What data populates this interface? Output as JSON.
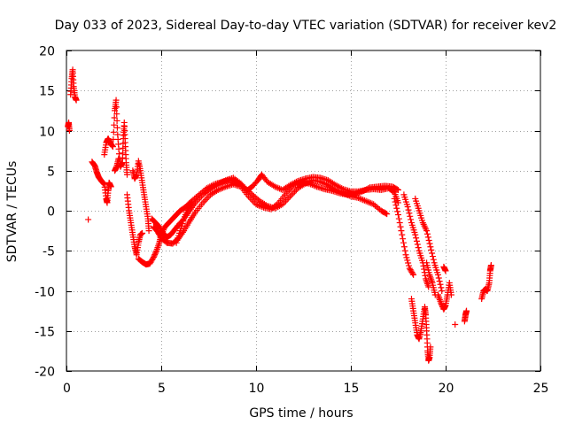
{
  "chart_data": {
    "type": "scatter",
    "title": "Day 033 of 2023, Sidereal Day-to-day VTEC variation (SDTVAR) for receiver kev2",
    "xlabel": "GPS time / hours",
    "ylabel": "SDTVAR / TECUs",
    "xlim": [
      0,
      25
    ],
    "ylim": [
      -20,
      20
    ],
    "xticks": [
      0,
      5,
      10,
      15,
      20,
      25
    ],
    "yticks": [
      -20,
      -15,
      -10,
      -5,
      0,
      5,
      10,
      15,
      20
    ],
    "grid": true,
    "marker": "+",
    "color": "#ff0000",
    "series": [
      {
        "name": "SDTVAR",
        "segments": [
          [
            [
              0.08,
              10.5
            ],
            [
              0.12,
              11.0
            ],
            [
              0.16,
              10.0
            ]
          ],
          [
            [
              0.22,
              14.5
            ],
            [
              0.28,
              16.5
            ],
            [
              0.33,
              17.6
            ],
            [
              0.38,
              15.5
            ],
            [
              0.45,
              14.2
            ],
            [
              0.52,
              13.8
            ]
          ],
          [
            [
              1.15,
              -1.1
            ]
          ],
          [
            [
              1.35,
              6.1
            ],
            [
              1.5,
              5.6
            ],
            [
              1.6,
              4.8
            ],
            [
              1.7,
              4.2
            ],
            [
              1.85,
              3.7
            ],
            [
              2.0,
              3.3
            ],
            [
              2.1,
              1.5
            ],
            [
              2.15,
              1.0
            ],
            [
              2.2,
              2.5
            ],
            [
              2.25,
              3.5
            ],
            [
              2.35,
              3.0
            ]
          ],
          [
            [
              2.0,
              7.0
            ],
            [
              2.1,
              8.5
            ],
            [
              2.2,
              9.0
            ],
            [
              2.3,
              8.5
            ],
            [
              2.45,
              8.0
            ],
            [
              2.55,
              12.5
            ],
            [
              2.62,
              13.8
            ],
            [
              2.7,
              9.5
            ],
            [
              2.8,
              6.5
            ],
            [
              2.85,
              5.5
            ],
            [
              2.95,
              6.0
            ],
            [
              3.0,
              9.0
            ],
            [
              3.05,
              11.0
            ],
            [
              3.1,
              8.5
            ],
            [
              3.15,
              6.0
            ],
            [
              3.2,
              4.5
            ]
          ],
          [
            [
              2.55,
              5.0
            ],
            [
              2.65,
              5.5
            ],
            [
              2.75,
              6.5
            ]
          ],
          [
            [
              3.2,
              2.0
            ],
            [
              3.3,
              0.0
            ],
            [
              3.4,
              -1.5
            ],
            [
              3.5,
              -3.0
            ],
            [
              3.6,
              -4.5
            ],
            [
              3.7,
              -5.5
            ],
            [
              3.8,
              -4.0
            ],
            [
              3.9,
              -3.0
            ],
            [
              4.0,
              -2.8
            ]
          ],
          [
            [
              3.5,
              5.0
            ],
            [
              3.6,
              4.0
            ],
            [
              3.7,
              4.5
            ],
            [
              3.8,
              6.2
            ],
            [
              3.9,
              5.0
            ],
            [
              4.0,
              3.5
            ],
            [
              4.1,
              2.0
            ],
            [
              4.2,
              0.5
            ],
            [
              4.3,
              -1.0
            ],
            [
              4.35,
              -2.5
            ]
          ],
          [
            [
              3.8,
              -6.0
            ],
            [
              4.0,
              -6.4
            ],
            [
              4.2,
              -6.7
            ],
            [
              4.4,
              -6.6
            ],
            [
              4.6,
              -5.8
            ],
            [
              4.75,
              -5.0
            ],
            [
              4.9,
              -4.0
            ],
            [
              5.0,
              -3.0
            ],
            [
              5.2,
              -2.0
            ],
            [
              5.4,
              -1.5
            ],
            [
              5.6,
              -1.0
            ],
            [
              5.8,
              -0.5
            ],
            [
              6.0,
              0.0
            ],
            [
              6.3,
              0.5
            ],
            [
              6.6,
              1.2
            ],
            [
              7.0,
              2.0
            ],
            [
              7.4,
              2.8
            ],
            [
              7.8,
              3.3
            ],
            [
              8.2,
              3.6
            ],
            [
              8.6,
              3.8
            ],
            [
              9.0,
              3.6
            ],
            [
              9.4,
              2.9
            ],
            [
              9.8,
              2.0
            ],
            [
              10.2,
              1.2
            ],
            [
              10.6,
              0.6
            ],
            [
              11.0,
              0.3
            ],
            [
              11.4,
              0.8
            ],
            [
              11.8,
              1.8
            ],
            [
              12.2,
              2.8
            ],
            [
              12.6,
              3.4
            ],
            [
              13.0,
              3.8
            ],
            [
              13.4,
              3.6
            ],
            [
              13.8,
              3.2
            ],
            [
              14.2,
              2.6
            ],
            [
              14.6,
              2.2
            ],
            [
              15.0,
              1.8
            ],
            [
              15.4,
              1.6
            ],
            [
              15.8,
              1.2
            ],
            [
              16.2,
              0.8
            ],
            [
              16.6,
              0.0
            ],
            [
              16.9,
              -0.4
            ]
          ],
          [
            [
              4.5,
              -1.0
            ],
            [
              4.7,
              -1.5
            ],
            [
              4.9,
              -2.0
            ],
            [
              5.1,
              -2.8
            ],
            [
              5.3,
              -3.3
            ],
            [
              5.5,
              -3.0
            ],
            [
              5.7,
              -2.4
            ],
            [
              5.9,
              -1.8
            ],
            [
              6.2,
              -1.0
            ],
            [
              6.5,
              0.0
            ],
            [
              6.8,
              1.0
            ],
            [
              7.2,
              2.0
            ],
            [
              7.6,
              2.7
            ],
            [
              8.0,
              3.3
            ],
            [
              8.4,
              3.8
            ],
            [
              8.8,
              4.1
            ],
            [
              9.2,
              3.4
            ],
            [
              9.5,
              2.5
            ],
            [
              9.8,
              3.0
            ],
            [
              10.1,
              3.8
            ],
            [
              10.3,
              4.5
            ],
            [
              10.6,
              3.6
            ],
            [
              11.0,
              3.0
            ],
            [
              11.4,
              2.6
            ],
            [
              11.8,
              3.2
            ],
            [
              12.2,
              3.7
            ],
            [
              12.6,
              4.0
            ],
            [
              13.0,
              4.2
            ],
            [
              13.4,
              4.1
            ],
            [
              13.8,
              3.8
            ],
            [
              14.2,
              3.2
            ],
            [
              14.6,
              2.7
            ],
            [
              15.0,
              2.4
            ],
            [
              15.4,
              2.4
            ],
            [
              15.8,
              2.6
            ],
            [
              16.2,
              2.7
            ],
            [
              16.6,
              2.6
            ],
            [
              17.0,
              2.8
            ],
            [
              17.3,
              2.3
            ],
            [
              17.5,
              1.0
            ]
          ],
          [
            [
              4.6,
              -2.0
            ],
            [
              4.8,
              -2.6
            ],
            [
              5.0,
              -3.4
            ],
            [
              5.3,
              -4.0
            ],
            [
              5.6,
              -4.1
            ],
            [
              5.9,
              -3.5
            ],
            [
              6.2,
              -2.5
            ],
            [
              6.5,
              -1.3
            ],
            [
              6.8,
              -0.2
            ],
            [
              7.2,
              1.0
            ],
            [
              7.6,
              2.0
            ],
            [
              8.0,
              2.6
            ],
            [
              8.4,
              3.0
            ],
            [
              8.8,
              3.3
            ],
            [
              9.2,
              3.0
            ],
            [
              9.6,
              1.8
            ],
            [
              10.0,
              0.8
            ],
            [
              10.4,
              0.4
            ],
            [
              10.8,
              0.2
            ],
            [
              11.2,
              1.0
            ],
            [
              11.6,
              2.2
            ],
            [
              12.0,
              3.2
            ],
            [
              12.4,
              3.5
            ],
            [
              12.8,
              3.4
            ],
            [
              13.2,
              3.0
            ],
            [
              13.6,
              2.7
            ],
            [
              14.0,
              2.5
            ],
            [
              14.4,
              2.2
            ],
            [
              14.8,
              2.0
            ],
            [
              15.2,
              2.1
            ],
            [
              15.6,
              2.4
            ],
            [
              16.0,
              2.9
            ],
            [
              16.4,
              3.0
            ],
            [
              16.8,
              3.1
            ],
            [
              17.2,
              3.0
            ],
            [
              17.5,
              2.6
            ]
          ],
          [
            [
              5.8,
              -4.0
            ],
            [
              6.0,
              -2.5
            ],
            [
              6.2,
              -1.0
            ],
            [
              6.4,
              0.3
            ],
            [
              6.6,
              1.0
            ]
          ],
          [
            [
              17.3,
              1.5
            ],
            [
              17.5,
              -0.5
            ],
            [
              17.7,
              -3.0
            ],
            [
              17.9,
              -5.5
            ],
            [
              18.1,
              -7.2
            ],
            [
              18.3,
              -8.0
            ]
          ],
          [
            [
              17.8,
              2.0
            ],
            [
              18.0,
              0.5
            ],
            [
              18.2,
              -1.5
            ],
            [
              18.4,
              -3.0
            ],
            [
              18.6,
              -5.0
            ],
            [
              18.8,
              -6.5
            ],
            [
              18.95,
              -8.5
            ],
            [
              19.1,
              -9.5
            ]
          ],
          [
            [
              18.4,
              1.5
            ],
            [
              18.6,
              0.0
            ],
            [
              18.8,
              -1.5
            ],
            [
              19.0,
              -2.5
            ],
            [
              19.2,
              -4.5
            ],
            [
              19.4,
              -6.5
            ],
            [
              19.6,
              -8.0
            ],
            [
              19.8,
              -10.0
            ]
          ],
          [
            [
              18.2,
              -11.0
            ],
            [
              18.3,
              -12.5
            ],
            [
              18.4,
              -14.0
            ],
            [
              18.5,
              -15.5
            ],
            [
              18.6,
              -16.0
            ],
            [
              18.7,
              -15.0
            ],
            [
              18.8,
              -13.5
            ],
            [
              18.9,
              -12.0
            ],
            [
              18.95,
              -13.0
            ],
            [
              19.0,
              -15.0
            ],
            [
              19.05,
              -17.5
            ],
            [
              19.1,
              -18.7
            ],
            [
              19.15,
              -18.3
            ],
            [
              19.2,
              -17.0
            ]
          ],
          [
            [
              19.0,
              -6.5
            ],
            [
              19.15,
              -8.0
            ],
            [
              19.3,
              -9.0
            ],
            [
              19.45,
              -10.5
            ]
          ],
          [
            [
              19.6,
              -10.5
            ],
            [
              19.75,
              -11.5
            ],
            [
              19.9,
              -12.3
            ],
            [
              20.0,
              -11.8
            ],
            [
              20.1,
              -10.5
            ],
            [
              20.2,
              -9.0
            ],
            [
              20.3,
              -10.5
            ]
          ],
          [
            [
              19.9,
              -7.0
            ],
            [
              20.0,
              -7.5
            ]
          ],
          [
            [
              20.5,
              -14.2
            ]
          ],
          [
            [
              21.0,
              -13.8
            ],
            [
              21.05,
              -13.0
            ],
            [
              21.1,
              -12.5
            ]
          ],
          [
            [
              21.9,
              -11.0
            ],
            [
              22.0,
              -10.0
            ],
            [
              22.1,
              -9.8
            ],
            [
              22.2,
              -10.0
            ],
            [
              22.3,
              -9.0
            ],
            [
              22.35,
              -7.5
            ],
            [
              22.4,
              -6.8
            ]
          ]
        ]
      }
    ]
  }
}
